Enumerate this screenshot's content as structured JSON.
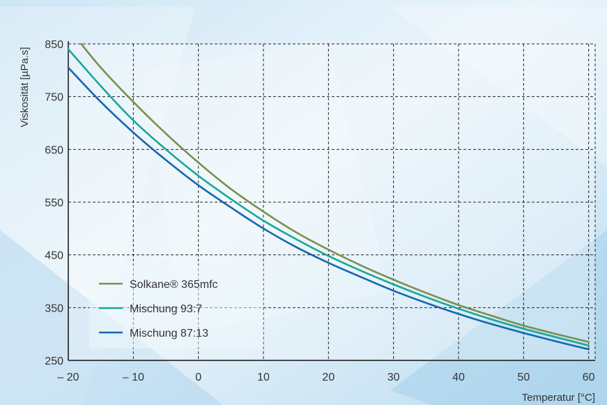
{
  "chart_data": {
    "type": "line",
    "xlabel": "Temperatur [°C]",
    "ylabel": "Viskosität [µPa.s]",
    "xlim": [
      -20,
      61
    ],
    "ylim": [
      250,
      850
    ],
    "x_ticks": [
      "– 20",
      "– 10",
      "0",
      "10",
      "20",
      "30",
      "40",
      "50",
      "60"
    ],
    "y_ticks": [
      "850",
      "750",
      "650",
      "550",
      "450",
      "350",
      "250"
    ],
    "grid": true,
    "legend_position": "bottom-left",
    "series": [
      {
        "name": "Solkane® 365mfc",
        "color": "#7a8f4e",
        "x": [
          -18,
          -15,
          -10,
          -5,
          0,
          5,
          10,
          15,
          20,
          25,
          30,
          35,
          40,
          45,
          50,
          55,
          60
        ],
        "y": [
          850,
          805,
          740,
          680,
          625,
          575,
          532,
          493,
          460,
          430,
          403,
          378,
          355,
          335,
          316,
          300,
          285
        ]
      },
      {
        "name": "Mischung 93:7",
        "color": "#1aa699",
        "x": [
          -20,
          -15,
          -10,
          -5,
          0,
          5,
          10,
          15,
          20,
          25,
          30,
          35,
          40,
          45,
          50,
          55,
          60
        ],
        "y": [
          840,
          770,
          705,
          650,
          600,
          556,
          515,
          480,
          448,
          420,
          394,
          370,
          348,
          328,
          310,
          294,
          278
        ]
      },
      {
        "name": "Mischung 87:13",
        "color": "#1566b0",
        "x": [
          -20,
          -15,
          -10,
          -5,
          0,
          5,
          10,
          15,
          20,
          25,
          30,
          35,
          40,
          45,
          50,
          55,
          60
        ],
        "y": [
          805,
          740,
          682,
          630,
          582,
          540,
          500,
          465,
          435,
          408,
          382,
          359,
          338,
          319,
          302,
          286,
          271
        ]
      }
    ]
  }
}
